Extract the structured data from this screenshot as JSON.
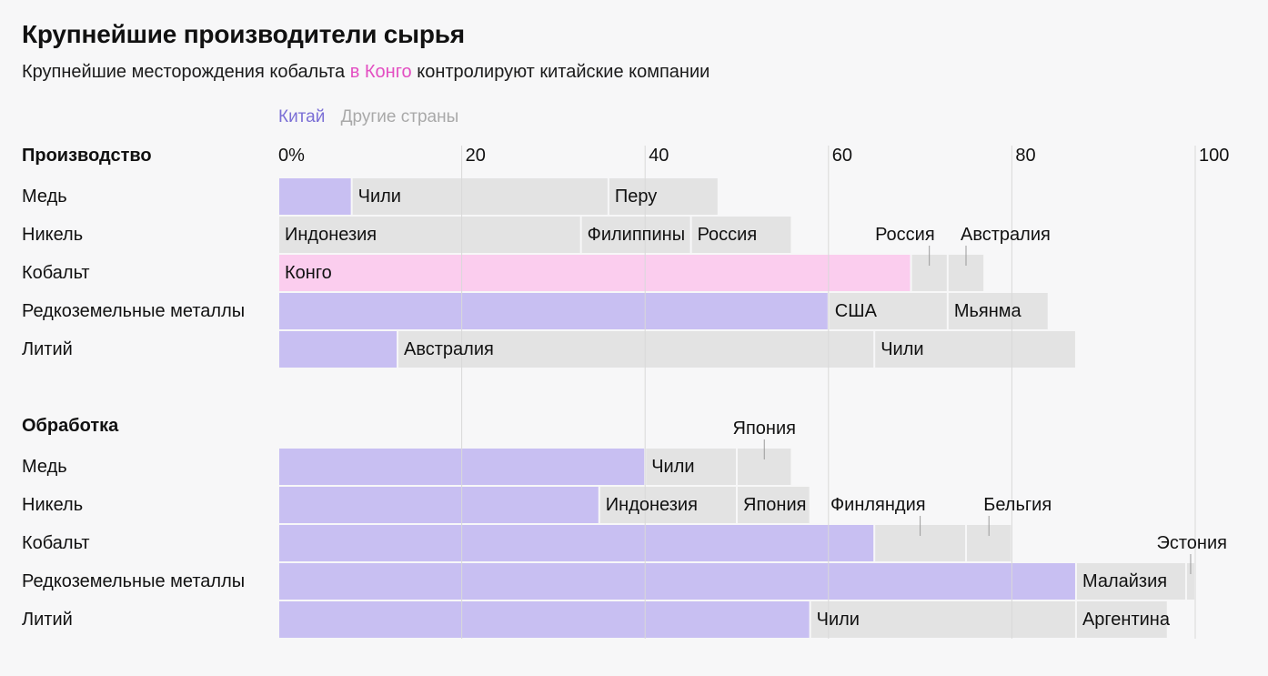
{
  "header": {
    "title": "Крупнейшие производители сырья",
    "subtitle_pre": "Крупнейшие месторождения кобальта ",
    "subtitle_hl": "в Конго",
    "subtitle_post": " контролируют китайские компании"
  },
  "colors": {
    "china": "#c8bff2",
    "other": "#e3e3e3",
    "congo": "#fbcdee",
    "highlight": "#e34fc2",
    "legend_china": "#7b6fd6",
    "legend_other": "#a9a9a9",
    "gridline": "#d9d9d9",
    "leader": "#9a9a9a"
  },
  "legend": {
    "china": "Китай",
    "other": "Другие страны"
  },
  "chart_data": {
    "type": "bar",
    "orientation": "horizontal",
    "stacked": true,
    "xlim": [
      0,
      100
    ],
    "ticks": [
      0,
      20,
      40,
      60,
      80,
      100
    ],
    "tick_labels": [
      "0%",
      "20",
      "40",
      "60",
      "80",
      "100"
    ],
    "groups": [
      {
        "title": "Производство",
        "rows": [
          {
            "label": "Медь",
            "segments": [
              {
                "name": "",
                "value": 8,
                "kind": "china"
              },
              {
                "name": "Чили",
                "value": 28,
                "kind": "other"
              },
              {
                "name": "Перу",
                "value": 12,
                "kind": "other"
              }
            ]
          },
          {
            "label": "Никель",
            "segments": [
              {
                "name": "Индонезия",
                "value": 33,
                "kind": "other"
              },
              {
                "name": "Филиппины",
                "value": 12,
                "kind": "other"
              },
              {
                "name": "Россия",
                "value": 11,
                "kind": "other"
              }
            ]
          },
          {
            "label": "Кобальт",
            "segments": [
              {
                "name": "Конго",
                "value": 69,
                "kind": "congo"
              },
              {
                "name": "Россия",
                "value": 4,
                "kind": "other",
                "callout": true
              },
              {
                "name": "Австралия",
                "value": 4,
                "kind": "other",
                "callout": true
              }
            ]
          },
          {
            "label": "Редкоземельные металлы",
            "segments": [
              {
                "name": "",
                "value": 60,
                "kind": "china"
              },
              {
                "name": "США",
                "value": 13,
                "kind": "other"
              },
              {
                "name": "Мьянма",
                "value": 11,
                "kind": "other"
              }
            ]
          },
          {
            "label": "Литий",
            "segments": [
              {
                "name": "",
                "value": 13,
                "kind": "china"
              },
              {
                "name": "Австралия",
                "value": 52,
                "kind": "other"
              },
              {
                "name": "Чили",
                "value": 22,
                "kind": "other"
              }
            ]
          }
        ]
      },
      {
        "title": "Обработка",
        "rows": [
          {
            "label": "Медь",
            "segments": [
              {
                "name": "",
                "value": 40,
                "kind": "china"
              },
              {
                "name": "Чили",
                "value": 10,
                "kind": "other"
              },
              {
                "name": "Япония",
                "value": 6,
                "kind": "other",
                "callout": true
              }
            ]
          },
          {
            "label": "Никель",
            "segments": [
              {
                "name": "",
                "value": 35,
                "kind": "china"
              },
              {
                "name": "Индонезия",
                "value": 15,
                "kind": "other"
              },
              {
                "name": "Япония",
                "value": 8,
                "kind": "other"
              }
            ]
          },
          {
            "label": "Кобальт",
            "segments": [
              {
                "name": "",
                "value": 65,
                "kind": "china"
              },
              {
                "name": "Финляндия",
                "value": 10,
                "kind": "other",
                "callout": true
              },
              {
                "name": "Бельгия",
                "value": 5,
                "kind": "other",
                "callout": true
              }
            ]
          },
          {
            "label": "Редкоземельные металлы",
            "segments": [
              {
                "name": "",
                "value": 87,
                "kind": "china"
              },
              {
                "name": "Малайзия",
                "value": 12,
                "kind": "other"
              },
              {
                "name": "Эстония",
                "value": 1,
                "kind": "other",
                "callout": true
              }
            ]
          },
          {
            "label": "Литий",
            "segments": [
              {
                "name": "",
                "value": 58,
                "kind": "china"
              },
              {
                "name": "Чили",
                "value": 29,
                "kind": "other"
              },
              {
                "name": "Аргентина",
                "value": 10,
                "kind": "other"
              }
            ]
          }
        ]
      }
    ]
  }
}
